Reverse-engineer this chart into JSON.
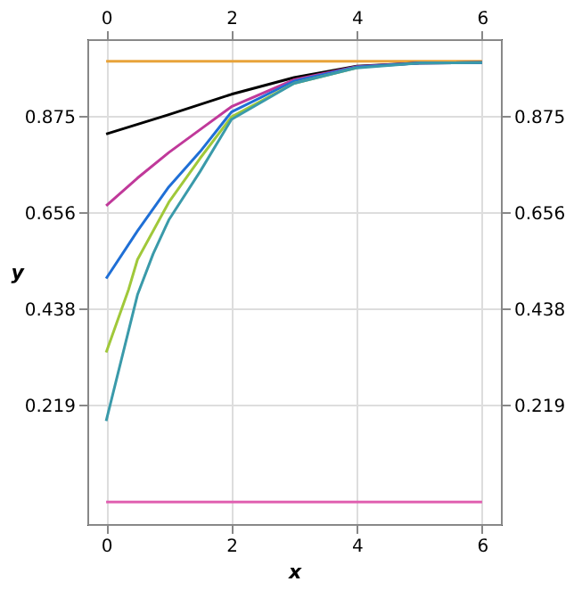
{
  "chart_data": {
    "type": "line",
    "xlabel": "x",
    "ylabel": "y",
    "xlim": [
      -0.3,
      6.3
    ],
    "ylim": [
      -0.05,
      1.05
    ],
    "xticks": [
      0,
      2,
      4,
      6
    ],
    "yticks": [
      0.219,
      0.438,
      0.656,
      0.875
    ],
    "x2lim": [
      -0.3,
      6.3
    ],
    "x2ticks": [
      0,
      2,
      4,
      6
    ],
    "y2lim": [
      -0.05,
      1.05
    ],
    "y2ticks": [
      0.219,
      0.438,
      0.656,
      0.875
    ],
    "grid": true,
    "legend": false,
    "marker": "none",
    "line_style": "solid",
    "series": [
      {
        "color": "#e8a33a",
        "x": [
          0,
          6
        ],
        "values": [
          1.0,
          1.0
        ]
      },
      {
        "color": "#e060b0",
        "x": [
          0,
          6
        ],
        "values": [
          0,
          0
        ]
      },
      {
        "color": "#000000",
        "x": [
          0,
          1,
          2,
          3,
          4,
          5,
          6
        ],
        "values": [
          0.835,
          0.879,
          0.925,
          0.963,
          0.989,
          0.996,
          0.997
        ]
      },
      {
        "color": "#c0399a",
        "x": [
          0,
          0.5,
          1,
          1.5,
          2,
          3,
          4,
          5,
          6
        ],
        "values": [
          0.672,
          0.735,
          0.793,
          0.845,
          0.897,
          0.958,
          0.988,
          0.996,
          0.997
        ]
      },
      {
        "color": "#1f6fd6",
        "x": [
          0,
          0.5,
          1,
          1.5,
          2,
          3,
          4,
          5,
          6
        ],
        "values": [
          0.507,
          0.615,
          0.715,
          0.795,
          0.885,
          0.955,
          0.987,
          0.996,
          0.997
        ]
      },
      {
        "color": "#a0c83a",
        "x": [
          0,
          0.36,
          0.5,
          1,
          1.5,
          2,
          3,
          4
        ],
        "values": [
          0.339,
          0.483,
          0.55,
          0.68,
          0.78,
          0.874,
          0.95,
          0.985
        ]
      },
      {
        "color": "#3a9aaa",
        "x": [
          0,
          0.5,
          0.75,
          1,
          1.5,
          2,
          3,
          4,
          5,
          6
        ],
        "values": [
          0.184,
          0.47,
          0.563,
          0.64,
          0.75,
          0.868,
          0.95,
          0.985,
          0.996,
          0.997
        ]
      }
    ]
  }
}
